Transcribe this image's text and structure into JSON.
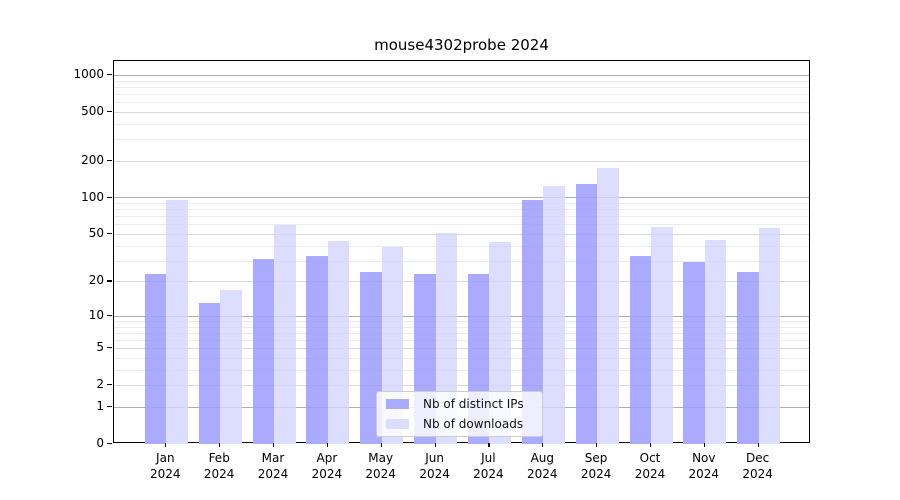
{
  "title": "mouse4302probe 2024",
  "legend": {
    "items": [
      {
        "label": "Nb of distinct IPs",
        "color": "#aaaaff"
      },
      {
        "label": "Nb of downloads",
        "color": "#ddddff"
      }
    ]
  },
  "colors": {
    "bar_distinct_ips": "#aaaaff",
    "bar_downloads": "#ddddff",
    "grid_major": "#b9b9b9",
    "grid_labeled": "#e2e2e2",
    "grid_minor": "#f1f1f1",
    "frame": "#000000",
    "background": "#ffffff"
  },
  "chart_data": {
    "type": "bar",
    "title": "mouse4302probe 2024",
    "categories": [
      "Jan",
      "Feb",
      "Mar",
      "Apr",
      "May",
      "Jun",
      "Jul",
      "Aug",
      "Sep",
      "Oct",
      "Nov",
      "Dec"
    ],
    "year_label": "2024",
    "series": [
      {
        "name": "Nb of distinct IPs",
        "color": "#aaaaff",
        "values": [
          23,
          13,
          31,
          33,
          24,
          23,
          23,
          95,
          130,
          33,
          29,
          24
        ]
      },
      {
        "name": "Nb of downloads",
        "color": "#ddddff",
        "values": [
          95,
          17,
          59,
          44,
          39,
          51,
          43,
          125,
          175,
          57,
          45,
          56
        ]
      }
    ],
    "xlabel": "",
    "ylabel": "",
    "y_scale": "log10(value+1)",
    "y_ticks": [
      1000,
      500,
      200,
      100,
      50,
      20,
      10,
      5,
      2,
      1,
      0
    ],
    "ylim": [
      0,
      1300
    ],
    "grid": true,
    "legend_position": "bottom-center"
  }
}
